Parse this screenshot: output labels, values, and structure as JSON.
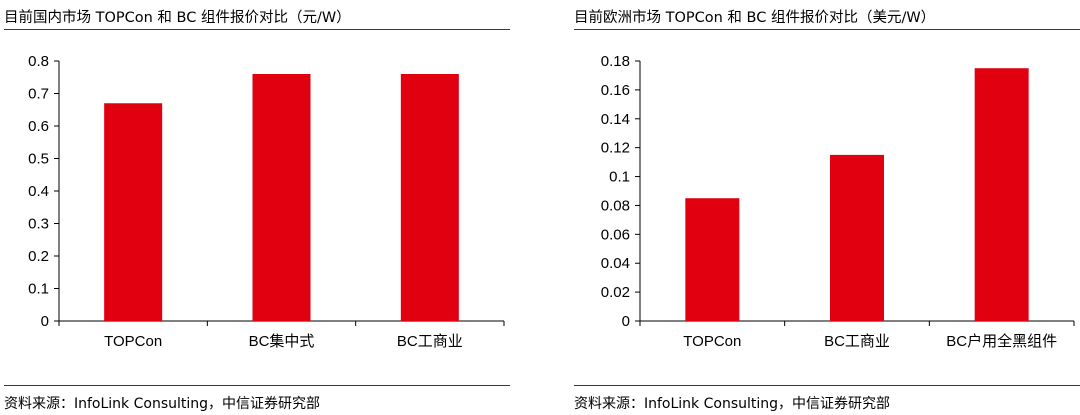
{
  "panels": [
    {
      "title": "目前国内市场 TOPCon 和 BC 组件报价对比（元/W）",
      "source": "资料来源：InfoLink Consulting，中信证券研究部"
    },
    {
      "title": "目前欧洲市场 TOPCon 和 BC 组件报价对比（美元/W）",
      "source": "资料来源：InfoLink Consulting，中信证券研究部"
    }
  ],
  "chart_data": [
    {
      "type": "bar",
      "title": "目前国内市场 TOPCon 和 BC 组件报价对比（元/W）",
      "categories": [
        "TOPCon",
        "BC集中式",
        "BC工商业"
      ],
      "values": [
        0.67,
        0.76,
        0.76
      ],
      "ylim": [
        0,
        0.8
      ],
      "yticks": [
        "0",
        "0.1",
        "0.2",
        "0.3",
        "0.4",
        "0.5",
        "0.6",
        "0.7",
        "0.8"
      ],
      "ytick_values": [
        0,
        0.1,
        0.2,
        0.3,
        0.4,
        0.5,
        0.6,
        0.7,
        0.8
      ],
      "bar_color": "#e00010",
      "grid": false,
      "legend": "none"
    },
    {
      "type": "bar",
      "title": "目前欧洲市场 TOPCon 和 BC 组件报价对比（美元/W）",
      "categories": [
        "TOPCon",
        "BC工商业",
        "BC户用全黑组件"
      ],
      "values": [
        0.085,
        0.115,
        0.175
      ],
      "ylim": [
        0,
        0.18
      ],
      "yticks": [
        "0",
        "0.02",
        "0.04",
        "0.06",
        "0.08",
        "0.1",
        "0.12",
        "0.14",
        "0.16",
        "0.18"
      ],
      "ytick_values": [
        0,
        0.02,
        0.04,
        0.06,
        0.08,
        0.1,
        0.12,
        0.14,
        0.16,
        0.18
      ],
      "bar_color": "#e00010",
      "grid": false,
      "legend": "none"
    }
  ]
}
